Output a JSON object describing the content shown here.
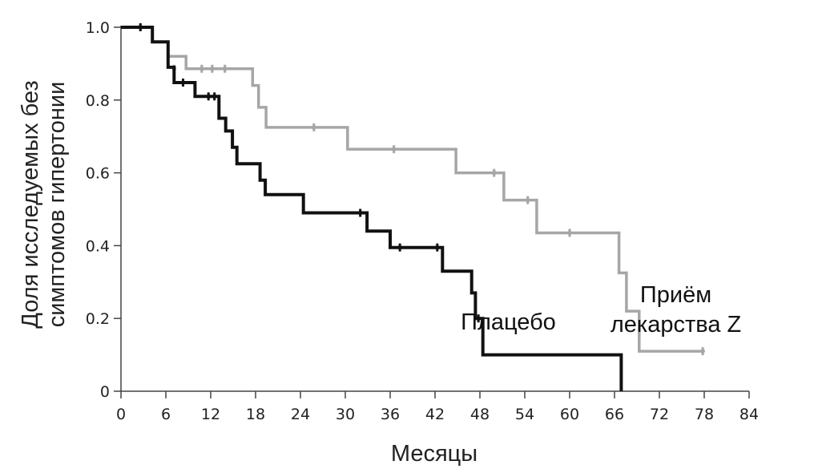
{
  "chart_data": {
    "type": "line",
    "title": "",
    "xlabel": "Месяцы",
    "ylabel_lines": [
      "Доля исследуемых без",
      "симптомов гипертонии"
    ],
    "xlim": [
      0,
      84
    ],
    "ylim": [
      0,
      1
    ],
    "x_ticks": [
      0,
      6,
      12,
      18,
      24,
      30,
      36,
      42,
      48,
      54,
      60,
      66,
      72,
      78,
      84
    ],
    "y_ticks": [
      {
        "value": 0,
        "label": "0"
      },
      {
        "value": 0.2,
        "label": "0.2"
      },
      {
        "value": 0.4,
        "label": "0.4"
      },
      {
        "value": 0.6,
        "label": "0.6"
      },
      {
        "value": 0.8,
        "label": "0.8"
      },
      {
        "value": 1.0,
        "label": "1.0"
      }
    ],
    "grid": false,
    "legend": "none",
    "series": [
      {
        "name": "Приём лекарства Z",
        "label_lines": [
          "Приём",
          "лекарства Z"
        ],
        "color": "#a6a6a6",
        "steps": [
          [
            0,
            1.0
          ],
          [
            4.2,
            1.0
          ],
          [
            4.2,
            0.96
          ],
          [
            6.3,
            0.96
          ],
          [
            6.3,
            0.92
          ],
          [
            8.7,
            0.92
          ],
          [
            8.7,
            0.886
          ],
          [
            17.6,
            0.886
          ],
          [
            17.6,
            0.84
          ],
          [
            18.4,
            0.84
          ],
          [
            18.4,
            0.78
          ],
          [
            19.4,
            0.78
          ],
          [
            19.4,
            0.725
          ],
          [
            30.3,
            0.725
          ],
          [
            30.3,
            0.665
          ],
          [
            44.8,
            0.665
          ],
          [
            44.8,
            0.6
          ],
          [
            51.2,
            0.6
          ],
          [
            51.2,
            0.525
          ],
          [
            55.6,
            0.525
          ],
          [
            55.6,
            0.435
          ],
          [
            66.6,
            0.435
          ],
          [
            66.6,
            0.325
          ],
          [
            67.6,
            0.325
          ],
          [
            67.6,
            0.22
          ],
          [
            69.3,
            0.22
          ],
          [
            69.3,
            0.11
          ],
          [
            77.8,
            0.11
          ]
        ],
        "censored": [
          [
            2.6,
            1.0
          ],
          [
            7.1,
            0.886
          ],
          [
            10.8,
            0.886
          ],
          [
            12.2,
            0.886
          ],
          [
            13.9,
            0.886
          ],
          [
            25.8,
            0.725
          ],
          [
            36.5,
            0.665
          ],
          [
            49.9,
            0.6
          ],
          [
            54.4,
            0.525
          ],
          [
            60.0,
            0.435
          ],
          [
            77.8,
            0.11
          ]
        ]
      },
      {
        "name": "Плацебо",
        "label_lines": [
          "Плацебо"
        ],
        "color": "#111111",
        "steps": [
          [
            0,
            1.0
          ],
          [
            4.2,
            1.0
          ],
          [
            4.2,
            0.96
          ],
          [
            6.3,
            0.96
          ],
          [
            6.3,
            0.89
          ],
          [
            7.1,
            0.89
          ],
          [
            7.1,
            0.848
          ],
          [
            9.9,
            0.848
          ],
          [
            9.9,
            0.81
          ],
          [
            13.1,
            0.81
          ],
          [
            13.1,
            0.75
          ],
          [
            14.0,
            0.75
          ],
          [
            14.0,
            0.715
          ],
          [
            14.9,
            0.715
          ],
          [
            14.9,
            0.67
          ],
          [
            15.5,
            0.67
          ],
          [
            15.5,
            0.625
          ],
          [
            18.6,
            0.625
          ],
          [
            18.6,
            0.58
          ],
          [
            19.3,
            0.58
          ],
          [
            19.3,
            0.54
          ],
          [
            24.4,
            0.54
          ],
          [
            24.4,
            0.49
          ],
          [
            32.9,
            0.49
          ],
          [
            32.9,
            0.44
          ],
          [
            36.0,
            0.44
          ],
          [
            36.0,
            0.395
          ],
          [
            43.0,
            0.395
          ],
          [
            43.0,
            0.33
          ],
          [
            46.9,
            0.33
          ],
          [
            46.9,
            0.27
          ],
          [
            47.4,
            0.27
          ],
          [
            47.4,
            0.2
          ],
          [
            48.4,
            0.2
          ],
          [
            48.4,
            0.1
          ],
          [
            66.9,
            0.1
          ],
          [
            66.9,
            0.0
          ]
        ],
        "censored": [
          [
            2.6,
            1.0
          ],
          [
            8.3,
            0.848
          ],
          [
            11.7,
            0.81
          ],
          [
            12.5,
            0.81
          ],
          [
            32.0,
            0.49
          ],
          [
            37.3,
            0.395
          ],
          [
            42.3,
            0.395
          ],
          [
            47.8,
            0.2
          ]
        ]
      }
    ],
    "annotations": {
      "series_label_positions": "in-plot, Плацебо near (51, 0.17); Приём лекарства Z near (74, 0.24)"
    }
  }
}
